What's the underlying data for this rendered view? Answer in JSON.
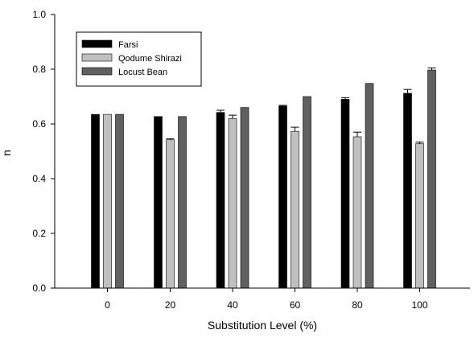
{
  "chart_data": {
    "type": "bar",
    "title": "",
    "xlabel": "Substitution Level (%)",
    "ylabel": "n",
    "categories": [
      "0",
      "20",
      "40",
      "60",
      "80",
      "100"
    ],
    "ylim": [
      0,
      1.0
    ],
    "yticks": [
      "0.0",
      "0.2",
      "0.4",
      "0.6",
      "0.8",
      "1.0"
    ],
    "grid": false,
    "legend_position": "top-left",
    "series": [
      {
        "name": "Farsi",
        "color": "#000000",
        "values": [
          0.635,
          0.627,
          0.642,
          0.665,
          0.69,
          0.712
        ],
        "errors": [
          0.0,
          0.0,
          0.008,
          0.003,
          0.006,
          0.014
        ]
      },
      {
        "name": "Qodume Shirazi",
        "color": "#c0c0c0",
        "values": [
          0.635,
          0.542,
          0.62,
          0.573,
          0.553,
          0.528
        ],
        "errors": [
          0.0,
          0.004,
          0.012,
          0.015,
          0.017,
          0.006
        ]
      },
      {
        "name": "Locust Bean",
        "color": "#606060",
        "values": [
          0.635,
          0.627,
          0.66,
          0.7,
          0.748,
          0.797
        ],
        "errors": [
          0.0,
          0.0,
          0.0,
          0.0,
          0.0,
          0.008
        ]
      }
    ]
  }
}
